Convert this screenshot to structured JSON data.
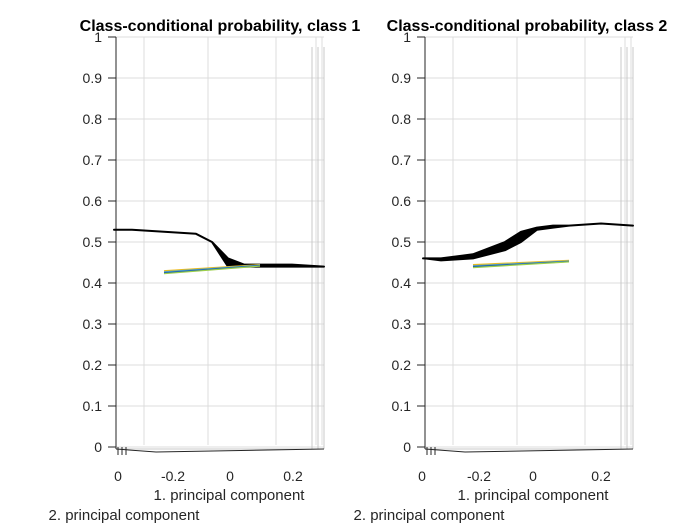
{
  "chart_data": [
    {
      "type": "surface",
      "title": "Class-conditional probability, class 1",
      "xlabel": "1. principal component",
      "ylabel": "2. principal component",
      "zlim": [
        0,
        1
      ],
      "z_ticks": [
        "0",
        "0.1",
        "0.2",
        "0.3",
        "0.4",
        "0.5",
        "0.6",
        "0.7",
        "0.8",
        "0.9",
        "1"
      ],
      "x_ticks": [
        "-0.2",
        "0",
        "0.2"
      ],
      "y_ticks": [
        "0"
      ],
      "grid": true,
      "surface_profile": {
        "x": [
          -0.35,
          -0.3,
          -0.2,
          -0.1,
          -0.05,
          0,
          0.05,
          0.1,
          0.2,
          0.3
        ],
        "z_upper": [
          0.53,
          0.53,
          0.525,
          0.52,
          0.5,
          0.46,
          0.445,
          0.445,
          0.445,
          0.44
        ],
        "z_lower": [
          0.53,
          0.53,
          0.525,
          0.52,
          0.5,
          0.44,
          0.44,
          0.44,
          0.44,
          0.44
        ]
      },
      "contour_band": {
        "x": [
          -0.2,
          0.1
        ],
        "z": [
          0.43,
          0.445
        ]
      }
    },
    {
      "type": "surface",
      "title": "Class-conditional probability, class 2",
      "xlabel": "1. principal component",
      "ylabel": "2. principal component",
      "zlim": [
        0,
        1
      ],
      "z_ticks": [
        "0",
        "0.1",
        "0.2",
        "0.3",
        "0.4",
        "0.5",
        "0.6",
        "0.7",
        "0.8",
        "0.9",
        "1"
      ],
      "x_ticks": [
        "-0.2",
        "0",
        "0.2"
      ],
      "y_ticks": [
        "0"
      ],
      "grid": true,
      "surface_profile": {
        "x": [
          -0.35,
          -0.3,
          -0.2,
          -0.1,
          -0.05,
          0,
          0.05,
          0.1,
          0.2,
          0.3
        ],
        "z_upper": [
          0.46,
          0.46,
          0.47,
          0.5,
          0.525,
          0.535,
          0.54,
          0.54,
          0.545,
          0.54
        ],
        "z_lower": [
          0.46,
          0.455,
          0.46,
          0.48,
          0.5,
          0.53,
          0.535,
          0.54,
          0.545,
          0.54
        ]
      },
      "contour_band": {
        "x": [
          -0.2,
          0.1
        ],
        "z": [
          0.445,
          0.455
        ]
      }
    }
  ]
}
